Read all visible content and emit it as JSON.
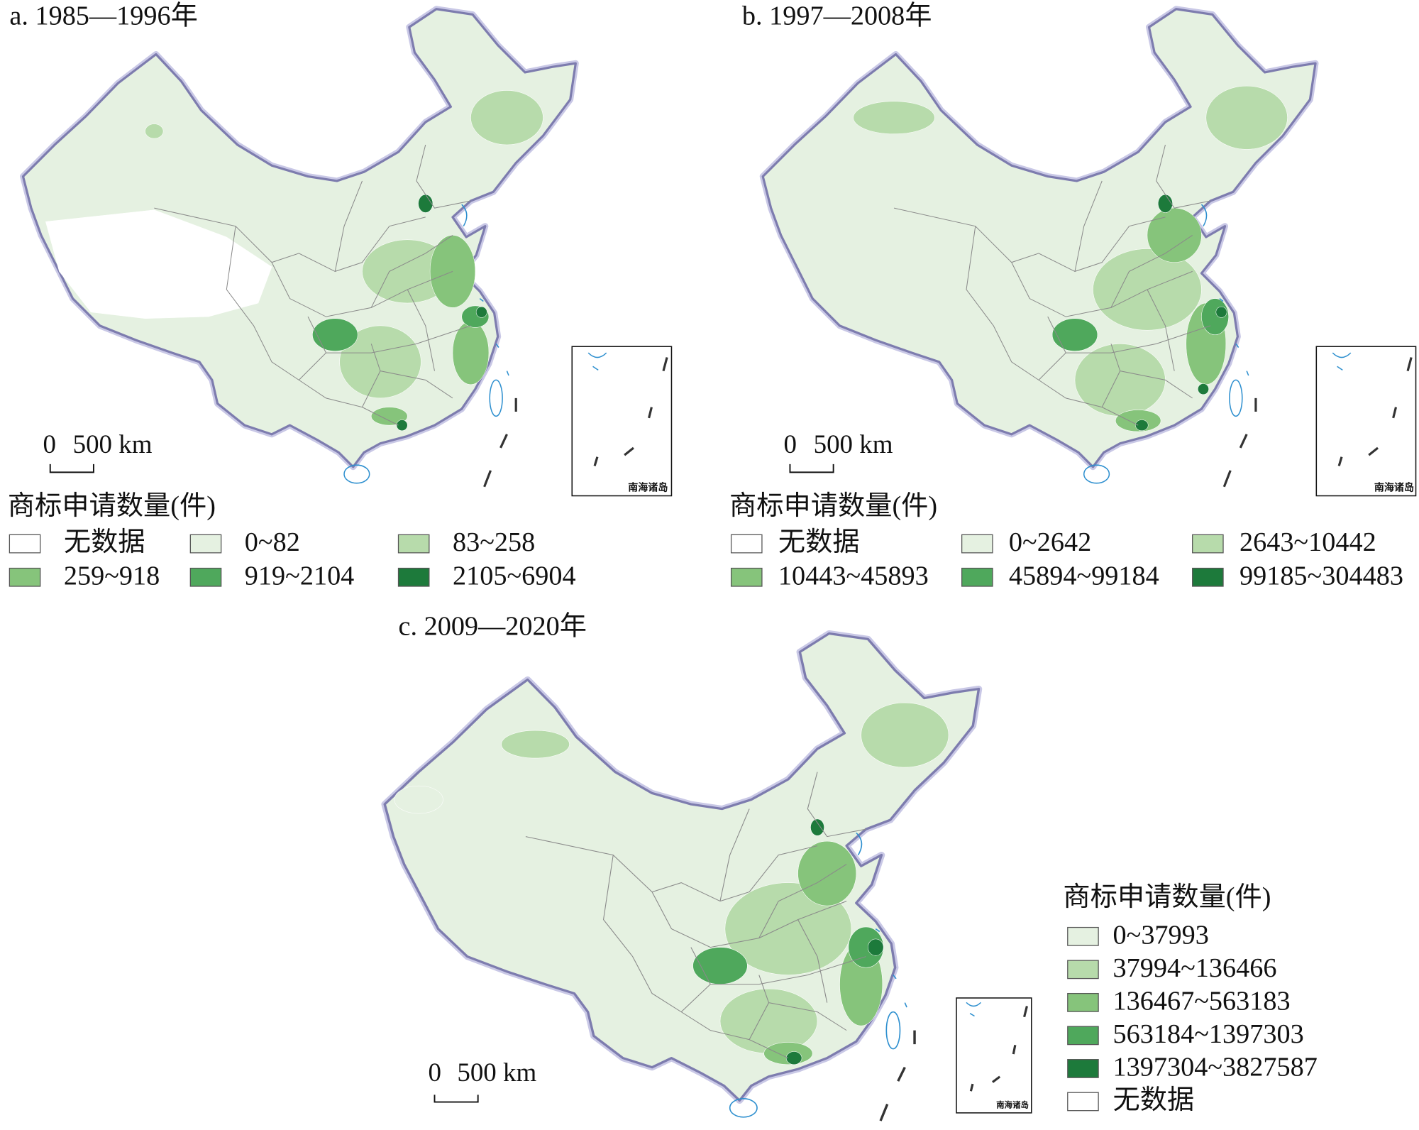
{
  "panels": [
    {
      "title": "a. 1985—1996年",
      "scale_bar": [
        "0",
        "500 km"
      ],
      "inset_label": "南海诸岛",
      "legend": {
        "title": "商标申请数量(件)",
        "items": [
          {
            "label": "无数据",
            "color": "#ffffff"
          },
          {
            "label": "0~82",
            "color": "#e5f1e1"
          },
          {
            "label": "83~258",
            "color": "#b7dbab"
          },
          {
            "label": "259~918",
            "color": "#86c47b"
          },
          {
            "label": "919~2104",
            "color": "#4fa85c"
          },
          {
            "label": "2105~6904",
            "color": "#1d7a3b"
          }
        ]
      }
    },
    {
      "title": "b. 1997—2008年",
      "scale_bar": [
        "0",
        "500 km"
      ],
      "inset_label": "南海诸岛",
      "legend": {
        "title": "商标申请数量(件)",
        "items": [
          {
            "label": "无数据",
            "color": "#ffffff"
          },
          {
            "label": "0~2642",
            "color": "#e5f1e1"
          },
          {
            "label": "2643~10442",
            "color": "#b7dbab"
          },
          {
            "label": "10443~45893",
            "color": "#86c47b"
          },
          {
            "label": "45894~99184",
            "color": "#4fa85c"
          },
          {
            "label": "99185~304483",
            "color": "#1d7a3b"
          }
        ]
      }
    },
    {
      "title": "c. 2009—2020年",
      "scale_bar": [
        "0",
        "500 km"
      ],
      "inset_label": "南海诸岛",
      "legend": {
        "title": "商标申请数量(件)",
        "items": [
          {
            "label": "0~37993",
            "color": "#e5f1e1"
          },
          {
            "label": "37994~136466",
            "color": "#b7dbab"
          },
          {
            "label": "136467~563183",
            "color": "#86c47b"
          },
          {
            "label": "563184~1397303",
            "color": "#4fa85c"
          },
          {
            "label": "1397304~3827587",
            "color": "#1d7a3b"
          },
          {
            "label": "无数据",
            "color": "#ffffff"
          }
        ]
      }
    }
  ]
}
